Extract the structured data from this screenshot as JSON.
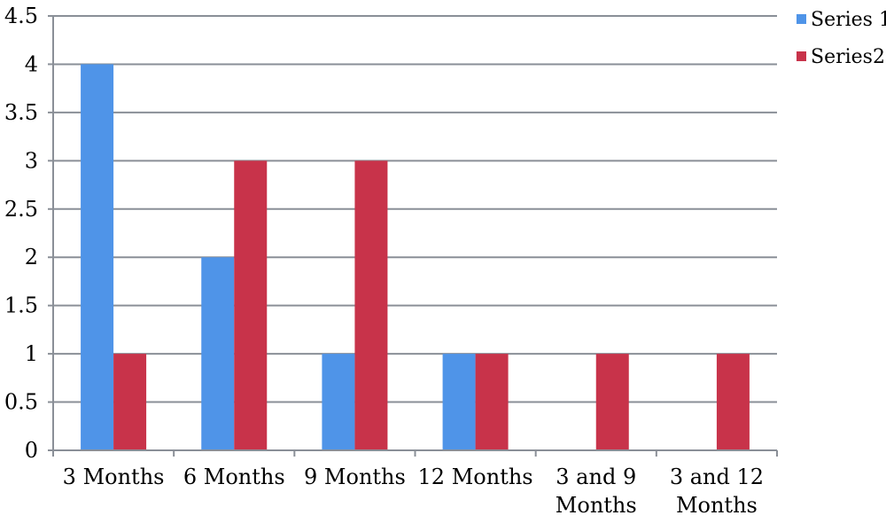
{
  "chart_data": {
    "type": "bar",
    "categories": [
      [
        "3 Months"
      ],
      [
        "6 Months"
      ],
      [
        "9 Months"
      ],
      [
        "12 Months"
      ],
      [
        "3 and 9",
        "Months"
      ],
      [
        "3 and 12",
        "Months"
      ]
    ],
    "series": [
      {
        "name": "Series 1",
        "color": "#4f94e8",
        "values": [
          4,
          2,
          1,
          1,
          0,
          0
        ]
      },
      {
        "name": "Series2",
        "color": "#c8334a",
        "values": [
          1,
          3,
          3,
          1,
          1,
          1
        ]
      }
    ],
    "ylim": [
      0,
      4.5
    ],
    "yticks": [
      "0",
      "0.5",
      "1",
      "1.5",
      "2",
      "2.5",
      "3",
      "3.5",
      "4",
      "4.5"
    ],
    "grid": true,
    "legend_position": "top-right",
    "title": "",
    "xlabel": "",
    "ylabel": ""
  }
}
